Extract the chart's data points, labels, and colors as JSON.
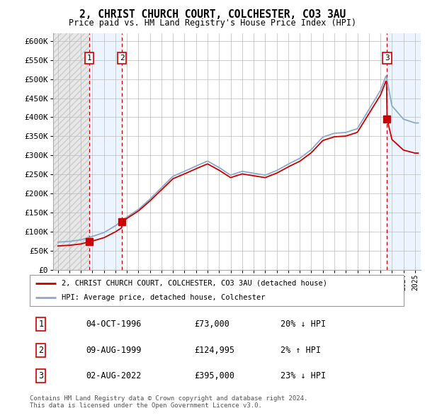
{
  "title": "2, CHRIST CHURCH COURT, COLCHESTER, CO3 3AU",
  "subtitle": "Price paid vs. HM Land Registry's House Price Index (HPI)",
  "ylim": [
    0,
    620000
  ],
  "yticks": [
    0,
    50000,
    100000,
    150000,
    200000,
    250000,
    300000,
    350000,
    400000,
    450000,
    500000,
    550000,
    600000
  ],
  "ytick_labels": [
    "£0",
    "£50K",
    "£100K",
    "£150K",
    "£200K",
    "£250K",
    "£300K",
    "£350K",
    "£400K",
    "£450K",
    "£500K",
    "£550K",
    "£600K"
  ],
  "xlim_start": 1993.6,
  "xlim_end": 2025.5,
  "purchases": [
    {
      "date": 1996.75,
      "price": 73000,
      "label": "1"
    },
    {
      "date": 1999.58,
      "price": 124995,
      "label": "2"
    },
    {
      "date": 2022.58,
      "price": 395000,
      "label": "3"
    }
  ],
  "purchase_color": "#cc0000",
  "hpi_color": "#88aacc",
  "legend_line1": "2, CHRIST CHURCH COURT, COLCHESTER, CO3 3AU (detached house)",
  "legend_line2": "HPI: Average price, detached house, Colchester",
  "table": [
    {
      "num": "1",
      "date": "04-OCT-1996",
      "price": "£73,000",
      "note": "20% ↓ HPI"
    },
    {
      "num": "2",
      "date": "09-AUG-1999",
      "price": "£124,995",
      "note": "2% ↑ HPI"
    },
    {
      "num": "3",
      "date": "02-AUG-2022",
      "price": "£395,000",
      "note": "23% ↓ HPI"
    }
  ],
  "footer": "Contains HM Land Registry data © Crown copyright and database right 2024.\nThis data is licensed under the Open Government Licence v3.0.",
  "grid_color": "#bbbbbb",
  "hpi_years": [
    1994,
    1995,
    1996,
    1997,
    1998,
    1999,
    2000,
    2001,
    2002,
    2003,
    2004,
    2005,
    2006,
    2007,
    2008,
    2009,
    2010,
    2011,
    2012,
    2013,
    2014,
    2015,
    2016,
    2017,
    2018,
    2019,
    2020,
    2021,
    2022,
    2022.5,
    2023,
    2024,
    2025
  ],
  "hpi_prices": [
    72000,
    74000,
    78000,
    87000,
    97000,
    115000,
    138000,
    158000,
    185000,
    215000,
    245000,
    258000,
    272000,
    285000,
    268000,
    248000,
    258000,
    253000,
    248000,
    260000,
    277000,
    292000,
    315000,
    348000,
    358000,
    360000,
    370000,
    420000,
    470000,
    510000,
    430000,
    395000,
    385000
  ]
}
